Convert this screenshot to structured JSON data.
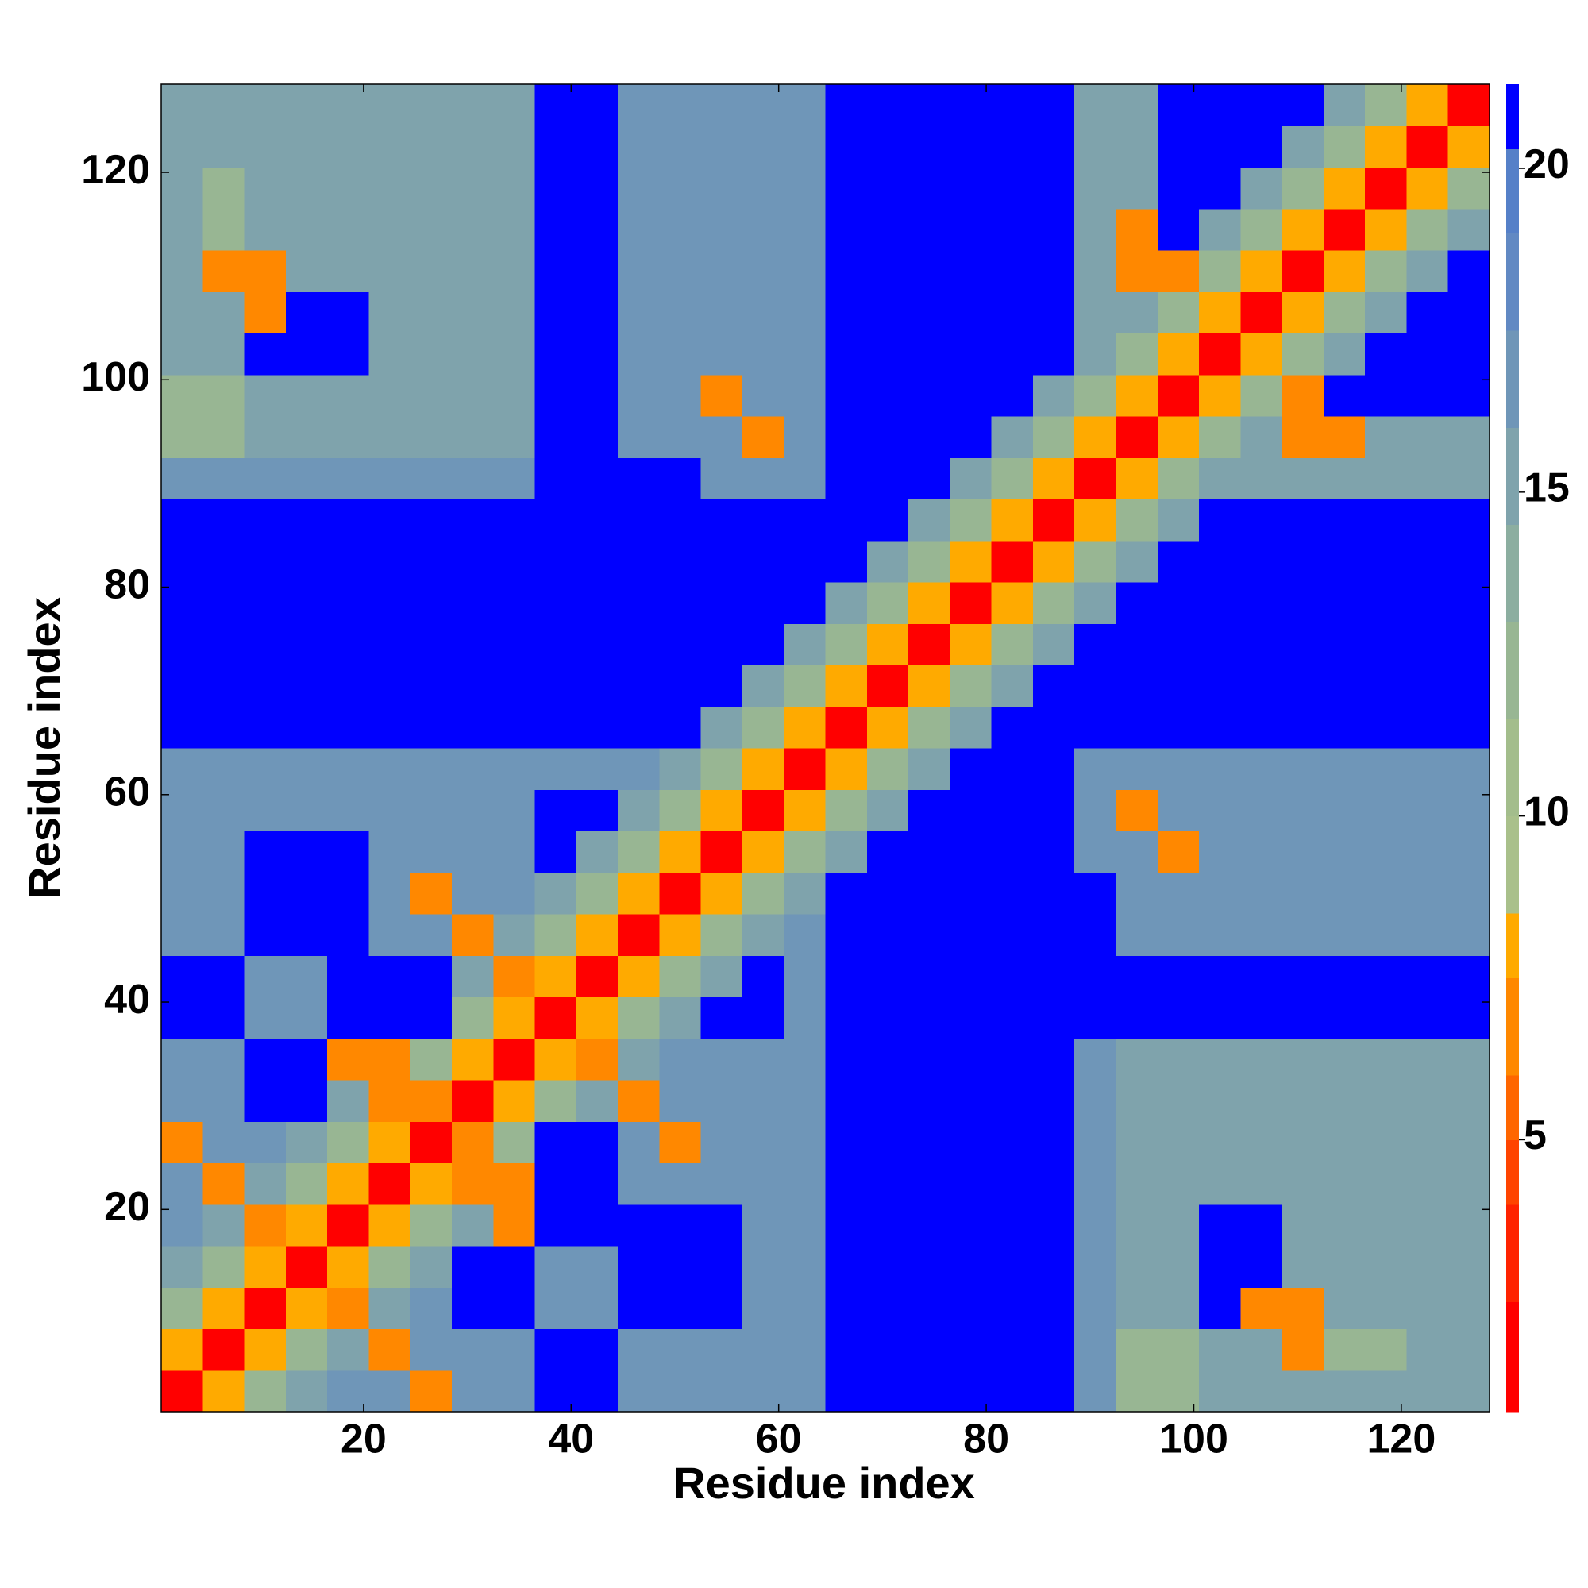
{
  "chart_data": {
    "type": "heatmap",
    "xlabel": "Residue index",
    "ylabel": "Residue index",
    "xlim": [
      0.5,
      128.5
    ],
    "ylim": [
      0.5,
      128.5
    ],
    "xticks": [
      20,
      40,
      60,
      80,
      100,
      120
    ],
    "yticks": [
      20,
      40,
      60,
      80,
      100,
      120
    ],
    "x_edges": [
      0.5,
      4.5,
      8.5,
      12.5,
      16.5,
      20.5,
      24.5,
      28.5,
      32.5,
      36.5,
      40.5,
      44.5,
      48.5,
      52.5,
      56.5,
      60.5,
      64.5,
      68.5,
      72.5,
      76.5,
      80.5,
      84.5,
      88.5,
      92.5,
      96.5,
      100.5,
      104.5,
      108.5,
      112.5,
      116.5,
      120.5,
      124.5,
      128.5
    ],
    "y_edges": [
      0.5,
      4.5,
      8.5,
      12.5,
      16.5,
      20.5,
      24.5,
      28.5,
      32.5,
      36.5,
      40.5,
      44.5,
      48.5,
      52.5,
      56.5,
      60.5,
      64.5,
      68.5,
      72.5,
      76.5,
      80.5,
      84.5,
      88.5,
      92.5,
      96.5,
      100.5,
      104.5,
      108.5,
      112.5,
      116.5,
      120.5,
      124.5,
      128.5
    ],
    "z": [
      [
        2,
        8,
        12,
        15,
        16,
        16,
        7,
        16,
        16,
        21,
        21,
        16,
        16,
        16,
        16,
        16,
        21,
        21,
        21,
        21,
        21,
        21,
        17,
        12,
        12,
        15,
        15,
        15,
        15,
        15,
        15,
        15
      ],
      [
        8,
        2,
        8,
        12,
        15,
        7,
        16,
        16,
        16,
        21,
        21,
        16,
        16,
        16,
        16,
        16,
        21,
        21,
        21,
        21,
        21,
        21,
        17,
        12,
        12,
        15,
        15,
        7,
        12,
        12,
        15,
        15
      ],
      [
        12,
        8,
        2,
        8,
        7,
        15,
        16,
        21,
        21,
        16,
        16,
        21,
        21,
        21,
        16,
        16,
        21,
        21,
        21,
        21,
        21,
        21,
        17,
        15,
        15,
        21,
        7,
        7,
        15,
        15,
        15,
        15
      ],
      [
        15,
        12,
        8,
        2,
        8,
        12,
        15,
        21,
        21,
        16,
        16,
        21,
        21,
        21,
        16,
        16,
        21,
        21,
        21,
        21,
        21,
        21,
        17,
        15,
        15,
        21,
        21,
        15,
        15,
        15,
        15,
        15
      ],
      [
        16,
        15,
        7,
        8,
        2,
        8,
        12,
        15,
        7,
        21,
        21,
        21,
        21,
        21,
        16,
        16,
        21,
        21,
        21,
        21,
        21,
        21,
        17,
        15,
        15,
        21,
        21,
        15,
        15,
        15,
        15,
        15
      ],
      [
        16,
        7,
        15,
        12,
        8,
        2,
        8,
        7,
        7,
        21,
        21,
        16,
        16,
        16,
        16,
        16,
        21,
        21,
        21,
        21,
        21,
        21,
        17,
        15,
        15,
        15,
        15,
        15,
        15,
        15,
        15,
        15
      ],
      [
        7,
        16,
        16,
        15,
        12,
        8,
        2,
        7,
        12,
        21,
        21,
        16,
        7,
        16,
        16,
        16,
        21,
        21,
        21,
        21,
        21,
        21,
        17,
        15,
        15,
        15,
        15,
        15,
        15,
        15,
        15,
        15
      ],
      [
        16,
        16,
        21,
        21,
        15,
        7,
        7,
        2,
        8,
        12,
        15,
        7,
        16,
        16,
        16,
        16,
        21,
        21,
        21,
        21,
        21,
        21,
        17,
        15,
        15,
        15,
        15,
        15,
        15,
        15,
        15,
        15
      ],
      [
        16,
        16,
        21,
        21,
        7,
        7,
        12,
        8,
        2,
        8,
        7,
        15,
        16,
        16,
        16,
        16,
        21,
        21,
        21,
        21,
        21,
        21,
        17,
        15,
        15,
        15,
        15,
        15,
        15,
        15,
        15,
        15
      ],
      [
        21,
        21,
        16,
        16,
        21,
        21,
        21,
        12,
        8,
        2,
        8,
        12,
        15,
        21,
        21,
        16,
        21,
        21,
        21,
        21,
        21,
        21,
        21,
        21,
        21,
        21,
        21,
        21,
        21,
        21,
        21,
        21
      ],
      [
        21,
        21,
        16,
        16,
        21,
        21,
        21,
        15,
        7,
        8,
        2,
        8,
        12,
        15,
        21,
        16,
        21,
        21,
        21,
        21,
        21,
        21,
        21,
        21,
        21,
        21,
        21,
        21,
        21,
        21,
        21,
        21
      ],
      [
        16,
        16,
        21,
        21,
        21,
        16,
        16,
        7,
        15,
        12,
        8,
        2,
        8,
        12,
        15,
        16,
        21,
        21,
        21,
        21,
        21,
        21,
        21,
        16,
        16,
        16,
        16,
        16,
        16,
        16,
        16,
        16
      ],
      [
        16,
        16,
        21,
        21,
        21,
        16,
        7,
        16,
        16,
        15,
        12,
        8,
        2,
        8,
        12,
        15,
        21,
        21,
        21,
        21,
        21,
        21,
        21,
        16,
        16,
        16,
        16,
        16,
        16,
        16,
        16,
        16
      ],
      [
        16,
        16,
        21,
        21,
        21,
        16,
        16,
        16,
        16,
        21,
        15,
        12,
        8,
        2,
        8,
        12,
        15,
        21,
        21,
        21,
        21,
        21,
        17,
        16,
        7,
        16,
        16,
        16,
        16,
        16,
        16,
        16
      ],
      [
        16,
        16,
        16,
        16,
        16,
        16,
        16,
        16,
        16,
        21,
        21,
        15,
        12,
        8,
        2,
        8,
        12,
        15,
        21,
        21,
        21,
        21,
        17,
        7,
        16,
        16,
        16,
        16,
        16,
        16,
        16,
        16
      ],
      [
        16,
        16,
        16,
        16,
        16,
        16,
        16,
        16,
        16,
        16,
        16,
        16,
        15,
        12,
        8,
        2,
        8,
        12,
        15,
        21,
        21,
        21,
        17,
        16,
        16,
        16,
        16,
        16,
        16,
        16,
        16,
        16
      ],
      [
        21,
        21,
        21,
        21,
        21,
        21,
        21,
        21,
        21,
        21,
        21,
        21,
        21,
        15,
        12,
        8,
        2,
        8,
        12,
        15,
        21,
        21,
        21,
        21,
        21,
        21,
        21,
        21,
        21,
        21,
        21,
        21
      ],
      [
        21,
        21,
        21,
        21,
        21,
        21,
        21,
        21,
        21,
        21,
        21,
        21,
        21,
        21,
        15,
        12,
        8,
        2,
        8,
        12,
        15,
        21,
        21,
        21,
        21,
        21,
        21,
        21,
        21,
        21,
        21,
        21
      ],
      [
        21,
        21,
        21,
        21,
        21,
        21,
        21,
        21,
        21,
        21,
        21,
        21,
        21,
        21,
        21,
        15,
        12,
        8,
        2,
        8,
        12,
        15,
        21,
        21,
        21,
        21,
        21,
        21,
        21,
        21,
        21,
        21
      ],
      [
        21,
        21,
        21,
        21,
        21,
        21,
        21,
        21,
        21,
        21,
        21,
        21,
        21,
        21,
        21,
        21,
        15,
        12,
        8,
        2,
        8,
        12,
        15,
        21,
        21,
        21,
        21,
        21,
        21,
        21,
        21,
        21
      ],
      [
        21,
        21,
        21,
        21,
        21,
        21,
        21,
        21,
        21,
        21,
        21,
        21,
        21,
        21,
        21,
        21,
        21,
        15,
        12,
        8,
        2,
        8,
        12,
        15,
        21,
        21,
        21,
        21,
        21,
        21,
        21,
        21
      ],
      [
        21,
        21,
        21,
        21,
        21,
        21,
        21,
        21,
        21,
        21,
        21,
        21,
        21,
        21,
        21,
        21,
        21,
        21,
        15,
        12,
        8,
        2,
        8,
        12,
        15,
        21,
        21,
        21,
        21,
        21,
        21,
        21
      ],
      [
        17,
        17,
        17,
        17,
        17,
        17,
        17,
        17,
        17,
        21,
        21,
        21,
        21,
        17,
        17,
        17,
        21,
        21,
        21,
        15,
        12,
        8,
        2,
        8,
        12,
        15,
        15,
        15,
        15,
        15,
        15,
        15
      ],
      [
        12,
        12,
        15,
        15,
        15,
        15,
        15,
        15,
        15,
        21,
        21,
        16,
        16,
        16,
        7,
        16,
        21,
        21,
        21,
        21,
        15,
        12,
        8,
        2,
        8,
        12,
        15,
        7,
        7,
        15,
        15,
        15
      ],
      [
        12,
        12,
        15,
        15,
        15,
        15,
        15,
        15,
        15,
        21,
        21,
        16,
        16,
        7,
        16,
        16,
        21,
        21,
        21,
        21,
        21,
        15,
        12,
        8,
        2,
        8,
        12,
        7,
        21,
        21,
        21,
        21
      ],
      [
        15,
        15,
        21,
        21,
        21,
        15,
        15,
        15,
        15,
        21,
        21,
        16,
        16,
        16,
        16,
        16,
        21,
        21,
        21,
        21,
        21,
        21,
        15,
        12,
        8,
        2,
        8,
        12,
        15,
        21,
        21,
        21
      ],
      [
        15,
        15,
        7,
        21,
        21,
        15,
        15,
        15,
        15,
        21,
        21,
        16,
        16,
        16,
        16,
        16,
        21,
        21,
        21,
        21,
        21,
        21,
        15,
        15,
        12,
        8,
        2,
        8,
        12,
        15,
        21,
        21
      ],
      [
        15,
        7,
        7,
        15,
        15,
        15,
        15,
        15,
        15,
        21,
        21,
        16,
        16,
        16,
        16,
        16,
        21,
        21,
        21,
        21,
        21,
        21,
        15,
        7,
        7,
        12,
        8,
        2,
        8,
        12,
        15,
        21
      ],
      [
        15,
        12,
        15,
        15,
        15,
        15,
        15,
        15,
        15,
        21,
        21,
        16,
        16,
        16,
        16,
        16,
        21,
        21,
        21,
        21,
        21,
        21,
        15,
        7,
        21,
        15,
        12,
        8,
        2,
        8,
        12,
        15
      ],
      [
        15,
        12,
        15,
        15,
        15,
        15,
        15,
        15,
        15,
        21,
        21,
        16,
        16,
        16,
        16,
        16,
        21,
        21,
        21,
        21,
        21,
        21,
        15,
        15,
        21,
        21,
        15,
        12,
        8,
        2,
        8,
        12
      ],
      [
        15,
        15,
        15,
        15,
        15,
        15,
        15,
        15,
        15,
        21,
        21,
        16,
        16,
        16,
        16,
        16,
        21,
        21,
        21,
        21,
        21,
        21,
        15,
        15,
        21,
        21,
        21,
        15,
        12,
        8,
        2,
        8
      ],
      [
        15,
        15,
        15,
        15,
        15,
        15,
        15,
        15,
        15,
        21,
        21,
        16,
        16,
        16,
        16,
        16,
        21,
        21,
        21,
        21,
        21,
        21,
        15,
        15,
        21,
        21,
        21,
        21,
        15,
        12,
        8,
        2
      ]
    ],
    "colorbar": {
      "levels": [
        0.8,
        2.5,
        4,
        5,
        6,
        7.5,
        8.5,
        10,
        11.5,
        13,
        14.5,
        16,
        17.5,
        19,
        20.3,
        21.3
      ],
      "colors": [
        "#ff0000",
        "#ff2200",
        "#ff4400",
        "#ff6600",
        "#ff8800",
        "#ffaa00",
        "#a9c08b",
        "#a3bd8c",
        "#98b693",
        "#8caea0",
        "#7fa3ac",
        "#6f96b8",
        "#6189c3",
        "#5580c8",
        "#0000ff"
      ],
      "ticks": [
        5,
        10,
        15,
        20
      ]
    }
  }
}
